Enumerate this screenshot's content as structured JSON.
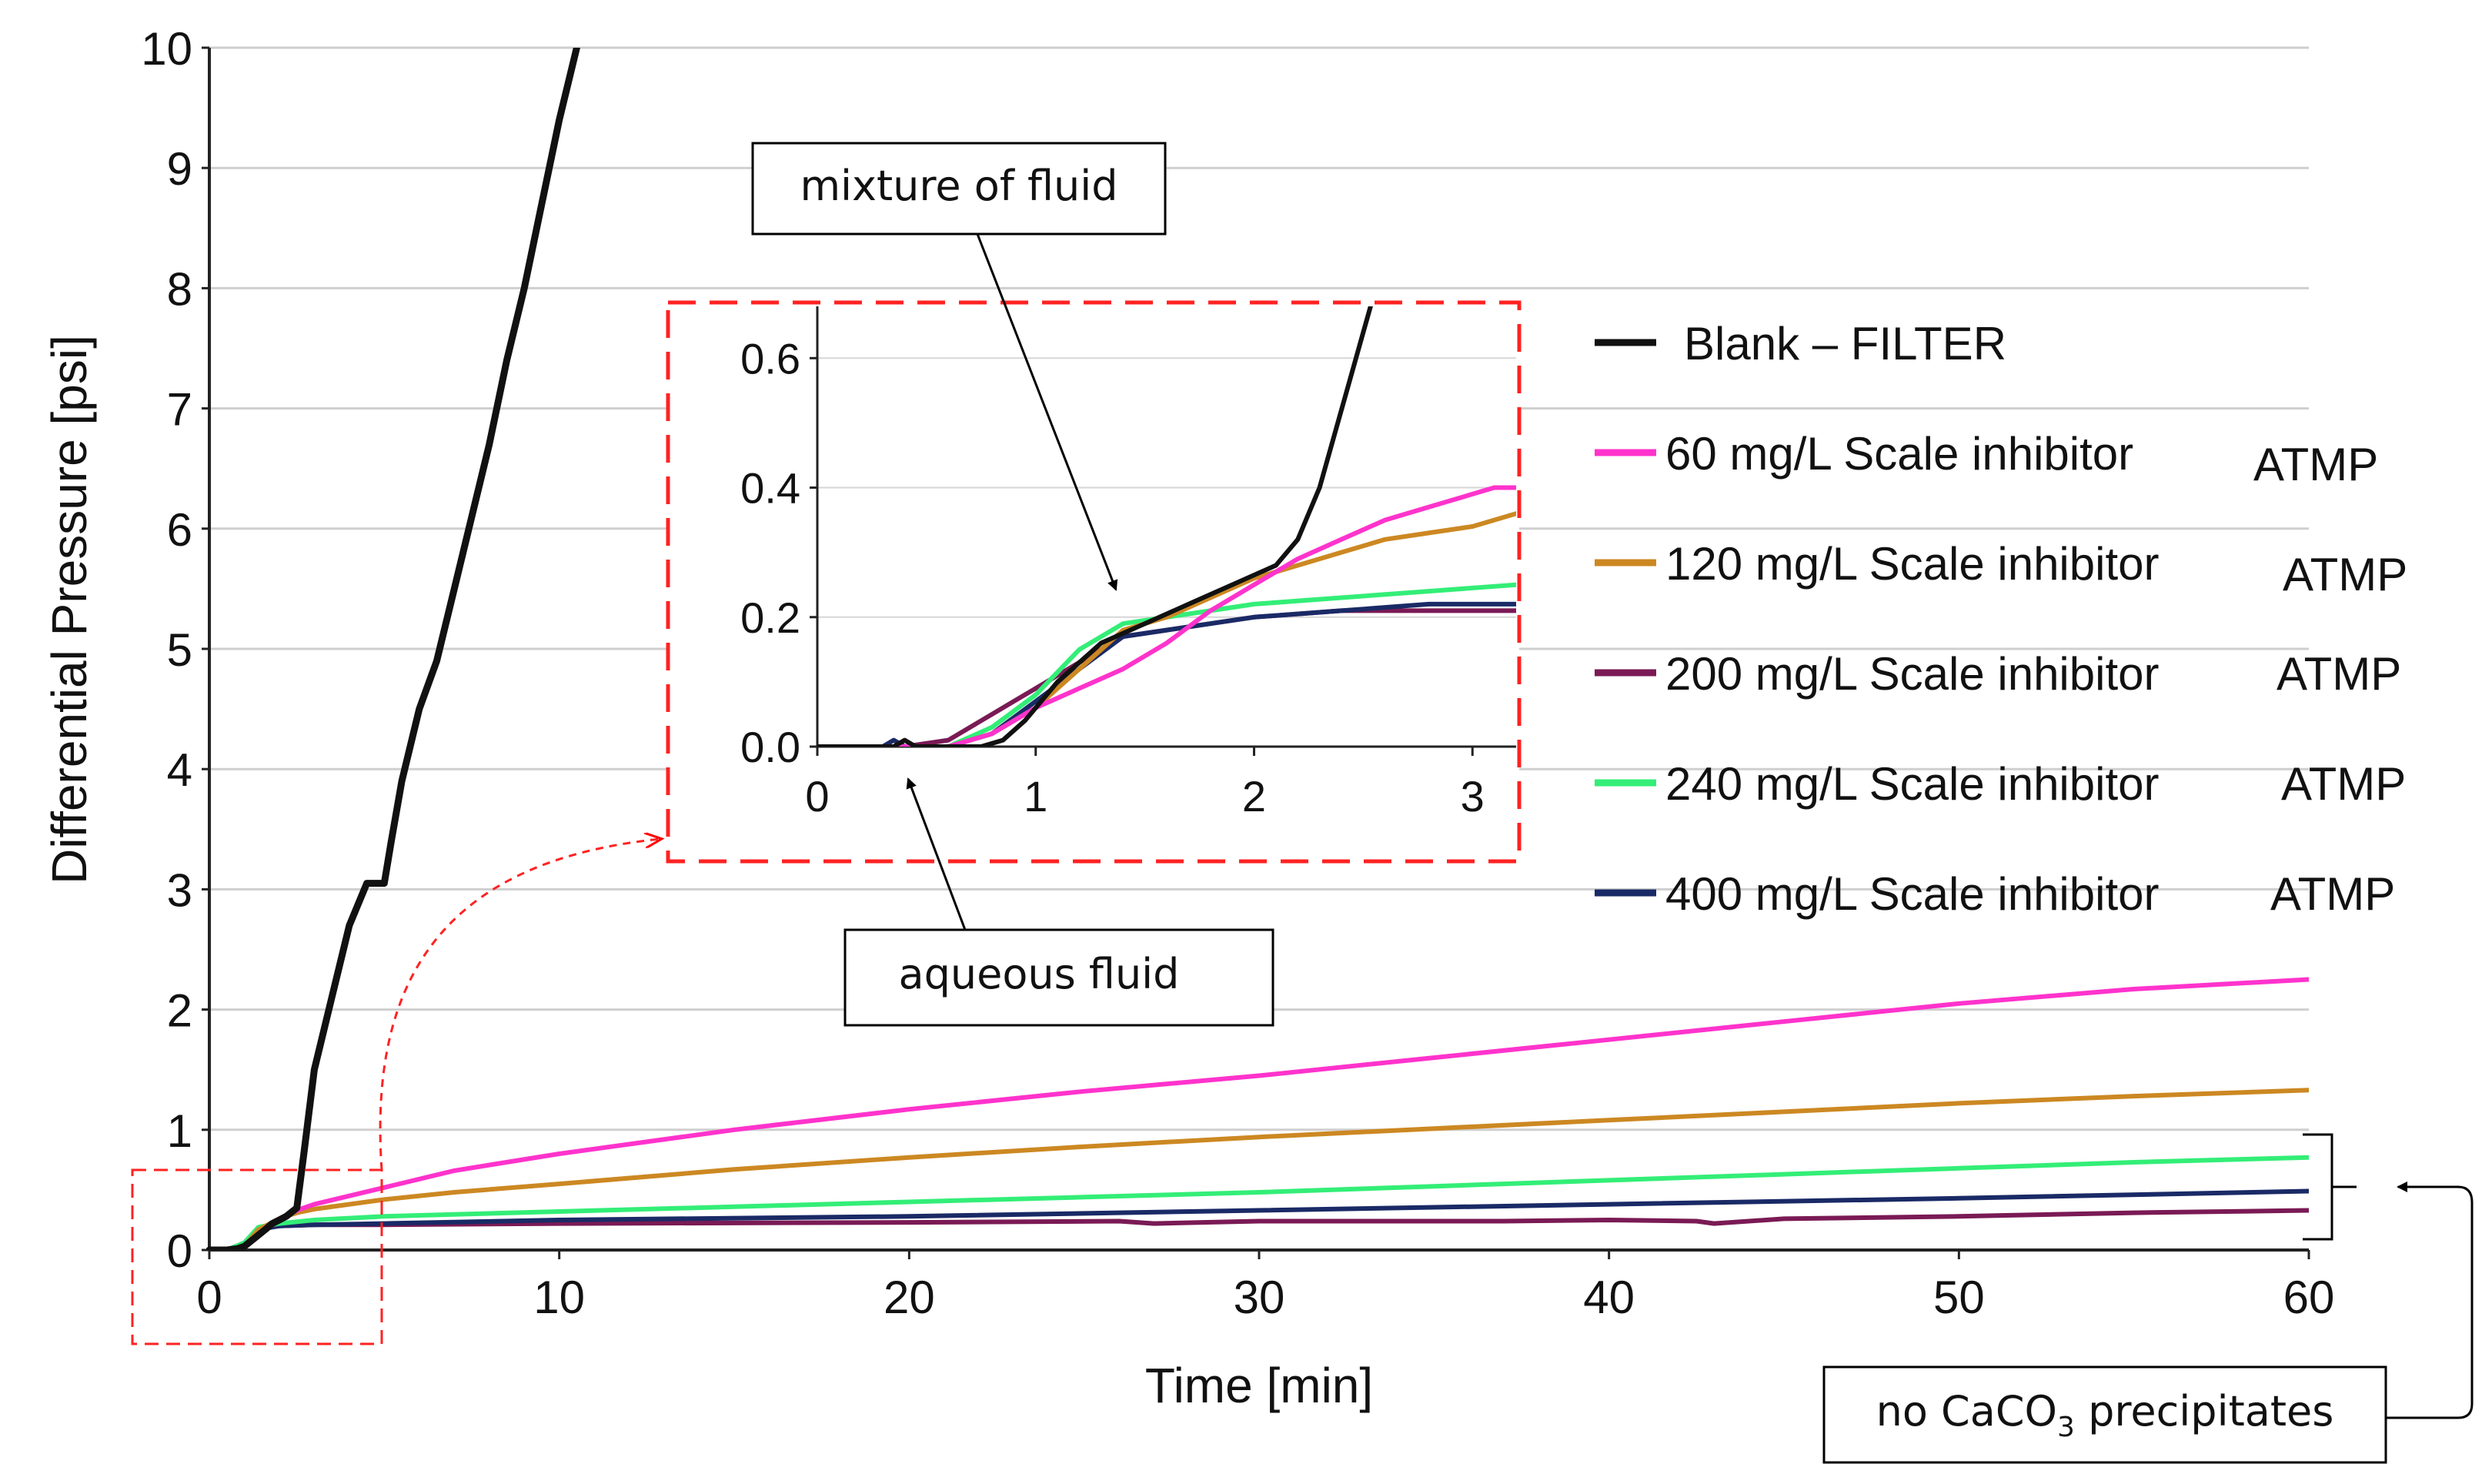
{
  "chart_data": {
    "type": "line",
    "title": "",
    "xlabel": "Time [min]",
    "ylabel": "Differential Pressure [psi]",
    "xlim": [
      0,
      60
    ],
    "ylim": [
      0,
      10
    ],
    "xticks": [
      0,
      10,
      20,
      30,
      40,
      50,
      60
    ],
    "yticks": [
      0,
      1,
      2,
      3,
      4,
      5,
      6,
      7,
      8,
      9,
      10
    ],
    "grid": true,
    "legend_position": "right",
    "series": [
      {
        "name": "Blank – FILTER",
        "label_main": "Blank – FILTER",
        "label_suffix": "",
        "color": "#111111",
        "x": [
          0,
          0.5,
          0.8,
          1.0,
          1.3,
          1.6,
          1.8,
          2.0,
          2.2,
          2.5,
          2.7,
          3.0,
          3.5,
          4.0,
          4.5,
          5.0,
          5.2,
          5.5,
          6.0,
          6.5,
          7.0,
          7.5,
          8.0,
          8.5,
          9.0,
          9.5,
          10.0,
          10.5
        ],
        "y": [
          0,
          0,
          0.01,
          0.03,
          0.1,
          0.17,
          0.22,
          0.25,
          0.28,
          0.35,
          0.8,
          1.5,
          2.1,
          2.7,
          3.05,
          3.05,
          3.4,
          3.9,
          4.5,
          4.9,
          5.5,
          6.1,
          6.7,
          7.4,
          8.0,
          8.7,
          9.4,
          10.0
        ]
      },
      {
        "name": "60 mg/L Scale inhibitor ATMP",
        "label_main": "60 mg/L Scale inhibitor",
        "label_suffix": "ATMP",
        "color": "#ff33cc",
        "x": [
          0,
          0.5,
          1.0,
          1.4,
          2.0,
          2.5,
          3.0,
          4.0,
          5.0,
          7.0,
          10.0,
          15.0,
          20.0,
          25.0,
          30.0,
          35.0,
          40.0,
          45.0,
          50.0,
          55.0,
          60.0
        ],
        "y": [
          0,
          0,
          0.03,
          0.12,
          0.25,
          0.33,
          0.38,
          0.45,
          0.52,
          0.66,
          0.8,
          1.0,
          1.17,
          1.32,
          1.45,
          1.6,
          1.75,
          1.9,
          2.05,
          2.17,
          2.25
        ]
      },
      {
        "name": "120 mg/L Scale inhibitor ATMP",
        "label_main": "120 mg/L Scale inhibitor",
        "label_suffix": "ATMP",
        "color": "#cc8822",
        "x": [
          0,
          0.5,
          1.0,
          1.4,
          2.0,
          2.5,
          3.0,
          4.0,
          5.0,
          7.0,
          10.0,
          15.0,
          20.0,
          25.0,
          30.0,
          35.0,
          40.0,
          45.0,
          50.0,
          55.0,
          60.0
        ],
        "y": [
          0,
          0,
          0.03,
          0.17,
          0.26,
          0.31,
          0.34,
          0.38,
          0.42,
          0.48,
          0.55,
          0.67,
          0.77,
          0.86,
          0.94,
          1.01,
          1.08,
          1.15,
          1.22,
          1.28,
          1.33
        ]
      },
      {
        "name": "200 mg/L Scale inhibitor ATMP",
        "label_main": "200 mg/L Scale inhibitor",
        "label_suffix": "ATMP",
        "color": "#7a1a55",
        "x": [
          0,
          0.5,
          1.0,
          1.4,
          2.0,
          3.0,
          5.0,
          10.0,
          20.0,
          26.0,
          27.0,
          30.0,
          37.0,
          40.0,
          42.5,
          43.0,
          45.0,
          50.0,
          55.0,
          60.0
        ],
        "y": [
          0,
          0,
          0.06,
          0.18,
          0.2,
          0.21,
          0.21,
          0.22,
          0.23,
          0.24,
          0.22,
          0.24,
          0.24,
          0.25,
          0.24,
          0.22,
          0.26,
          0.28,
          0.31,
          0.33
        ]
      },
      {
        "name": "240 mg/L Scale inhibitor ATMP",
        "label_main": "240 mg/L Scale inhibitor",
        "label_suffix": "ATMP",
        "color": "#33ee77",
        "x": [
          0,
          0.5,
          1.0,
          1.4,
          2.0,
          3.0,
          5.0,
          10.0,
          15.0,
          20.0,
          25.0,
          30.0,
          35.0,
          40.0,
          45.0,
          50.0,
          55.0,
          60.0
        ],
        "y": [
          0,
          0,
          0.06,
          0.19,
          0.22,
          0.25,
          0.28,
          0.32,
          0.36,
          0.4,
          0.44,
          0.48,
          0.53,
          0.58,
          0.63,
          0.68,
          0.73,
          0.77
        ]
      },
      {
        "name": "400 mg/L Scale inhibitor ATMP",
        "label_main": "400 mg/L Scale inhibitor",
        "label_suffix": "ATMP",
        "color": "#1a2a66",
        "x": [
          0,
          0.5,
          1.0,
          1.4,
          2.0,
          3.0,
          5.0,
          10.0,
          20.0,
          30.0,
          40.0,
          50.0,
          60.0
        ],
        "y": [
          0,
          0,
          0.04,
          0.17,
          0.2,
          0.21,
          0.22,
          0.25,
          0.28,
          0.33,
          0.38,
          0.43,
          0.49
        ]
      }
    ],
    "inset": {
      "xlim": [
        0,
        3.2
      ],
      "ylim": [
        0,
        0.68
      ],
      "xticks": [
        0,
        1,
        2,
        3
      ],
      "yticks": [
        "0.0",
        "0.2",
        "0.4",
        "0.6"
      ],
      "series": [
        {
          "color": "#111111",
          "x": [
            0,
            0.35,
            0.4,
            0.45,
            0.55,
            0.75,
            0.85,
            0.95,
            1.1,
            1.3,
            1.5,
            1.7,
            1.9,
            2.1,
            2.2,
            2.3,
            2.4,
            2.5,
            2.55
          ],
          "y": [
            0,
            0,
            0.01,
            0,
            0,
            0,
            0.01,
            0.04,
            0.1,
            0.16,
            0.19,
            0.22,
            0.25,
            0.28,
            0.32,
            0.4,
            0.52,
            0.64,
            0.7
          ]
        },
        {
          "color": "#ff33cc",
          "x": [
            0,
            0.4,
            0.6,
            0.8,
            1.0,
            1.2,
            1.4,
            1.6,
            1.8,
            2.0,
            2.2,
            2.4,
            2.6,
            2.8,
            3.0,
            3.1,
            3.2
          ],
          "y": [
            0,
            0,
            0,
            0.02,
            0.06,
            0.09,
            0.12,
            0.16,
            0.21,
            0.25,
            0.29,
            0.32,
            0.35,
            0.37,
            0.39,
            0.4,
            0.4
          ]
        },
        {
          "color": "#cc8822",
          "x": [
            0,
            0.4,
            0.6,
            0.8,
            1.0,
            1.2,
            1.4,
            1.6,
            1.8,
            2.0,
            2.2,
            2.4,
            2.6,
            2.8,
            3.0,
            3.2
          ],
          "y": [
            0,
            0,
            0,
            0.02,
            0.06,
            0.12,
            0.18,
            0.2,
            0.23,
            0.26,
            0.28,
            0.3,
            0.32,
            0.33,
            0.34,
            0.36
          ]
        },
        {
          "color": "#7a1a55",
          "x": [
            0,
            0.4,
            0.6,
            0.8,
            0.9,
            1.0,
            1.2,
            1.4,
            1.6,
            1.8,
            2.0,
            2.4,
            2.8,
            3.2
          ],
          "y": [
            0,
            0,
            0.01,
            0.05,
            0.07,
            0.09,
            0.13,
            0.17,
            0.18,
            0.19,
            0.2,
            0.21,
            0.21,
            0.21
          ]
        },
        {
          "color": "#33ee77",
          "x": [
            0,
            0.4,
            0.6,
            0.8,
            1.0,
            1.2,
            1.4,
            1.6,
            1.8,
            2.0,
            2.4,
            2.8,
            3.2
          ],
          "y": [
            0,
            0,
            0,
            0.03,
            0.08,
            0.15,
            0.19,
            0.2,
            0.21,
            0.22,
            0.23,
            0.24,
            0.25
          ]
        },
        {
          "color": "#1a2a66",
          "x": [
            0,
            0.3,
            0.35,
            0.4,
            0.6,
            0.8,
            1.0,
            1.2,
            1.4,
            1.6,
            1.8,
            2.0,
            2.4,
            2.8,
            3.2
          ],
          "y": [
            0,
            0,
            0.01,
            0,
            0,
            0.02,
            0.07,
            0.12,
            0.17,
            0.18,
            0.19,
            0.2,
            0.21,
            0.22,
            0.22
          ]
        }
      ]
    },
    "annotations": {
      "mixture": "mixture of fluid",
      "aqueous": "aqueous fluid",
      "no_caco3_prefix": "no CaCO",
      "no_caco3_sub": "3",
      "no_caco3_suffix": " precipitates"
    }
  }
}
